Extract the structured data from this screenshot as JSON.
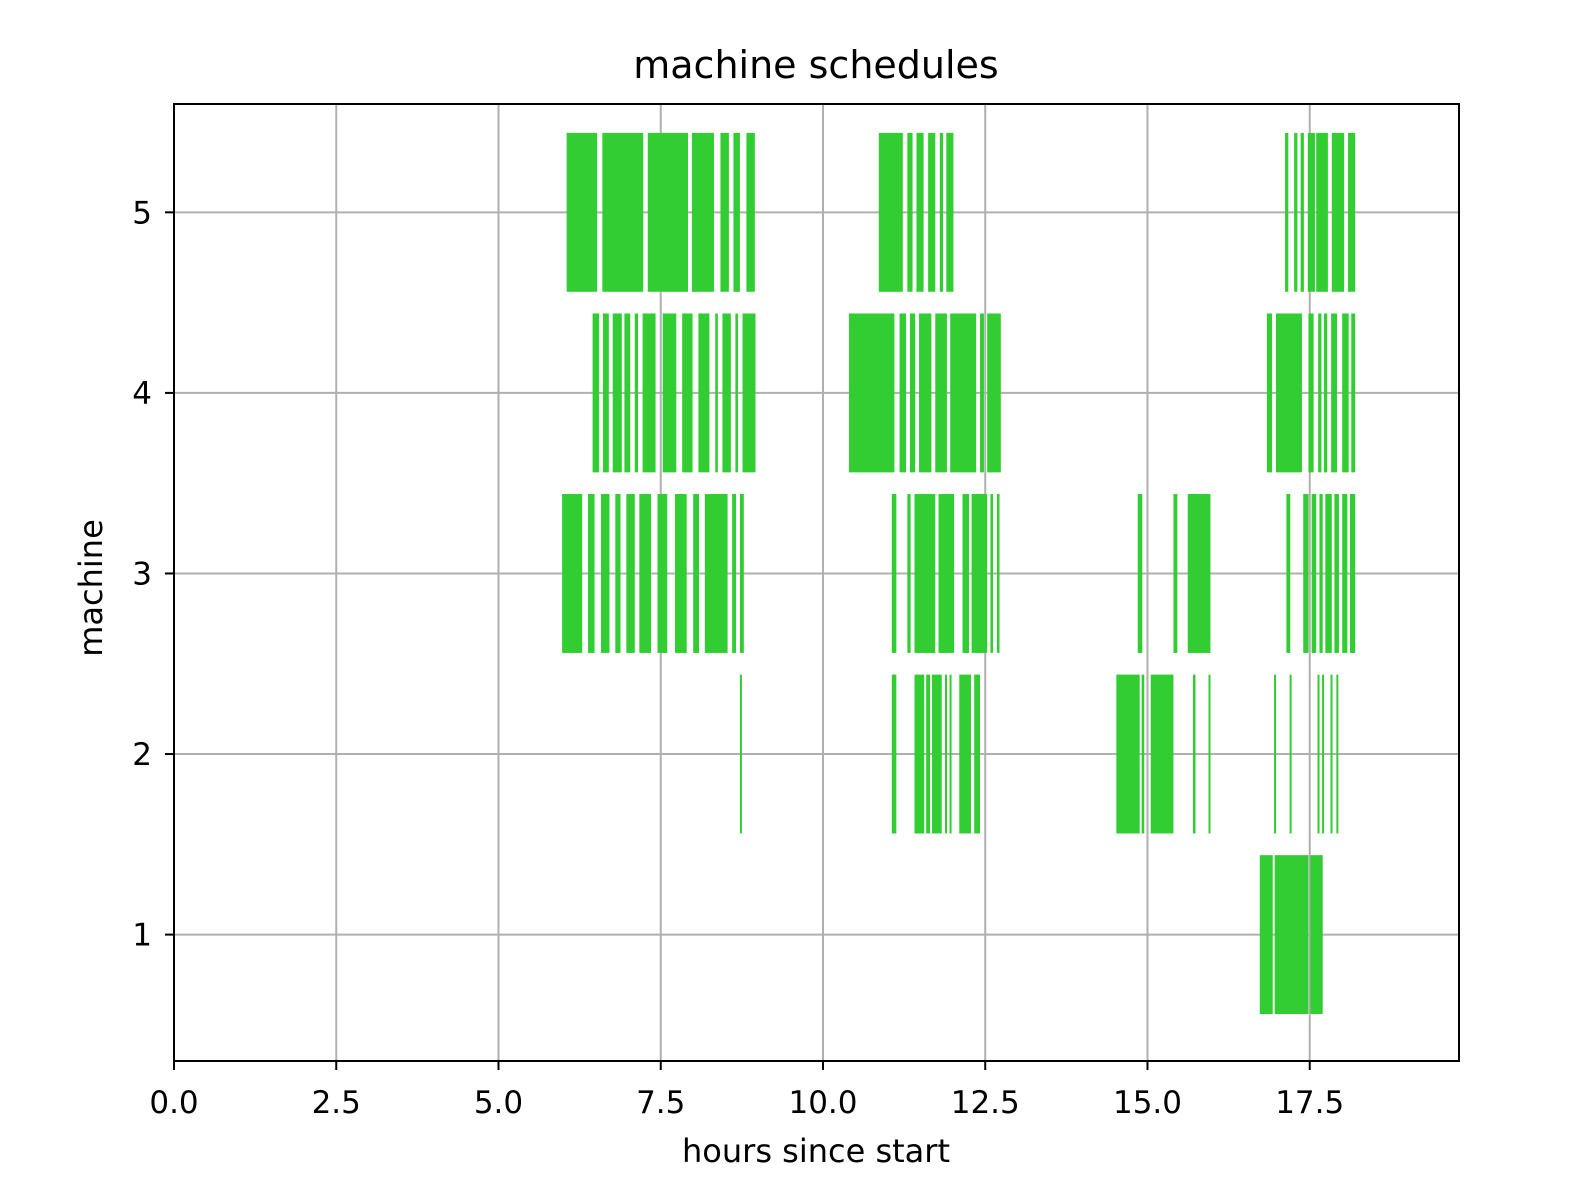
{
  "chart_data": {
    "type": "bar",
    "orientation": "horizontal-broken-bars",
    "title": "machine schedules",
    "xlabel": "hours since start",
    "ylabel": "machine",
    "xlim": [
      0,
      19.8
    ],
    "ylim": [
      0.3,
      5.6
    ],
    "xticks": [
      0.0,
      2.5,
      5.0,
      7.5,
      10.0,
      12.5,
      15.0,
      17.5
    ],
    "xtick_labels": [
      "0.0",
      "2.5",
      "5.0",
      "7.5",
      "10.0",
      "12.5",
      "15.0",
      "17.5"
    ],
    "yticks": [
      1,
      2,
      3,
      4,
      5
    ],
    "ytick_labels": [
      "1",
      "2",
      "3",
      "4",
      "5"
    ],
    "bar_height": 0.88,
    "grid": true,
    "colors": {
      "bar": "#32cd32",
      "grid": "#b0b0b0",
      "axes": "#000000",
      "background": "#ffffff"
    },
    "series": [
      {
        "machine": 1,
        "intervals": [
          [
            16.73,
            16.93
          ],
          [
            16.96,
            17.48
          ],
          [
            17.51,
            17.7
          ]
        ]
      },
      {
        "machine": 2,
        "intervals": [
          [
            8.72,
            8.75
          ],
          [
            11.06,
            11.13
          ],
          [
            11.41,
            11.56
          ],
          [
            11.59,
            11.65
          ],
          [
            11.68,
            11.83
          ],
          [
            11.88,
            11.91
          ],
          [
            11.95,
            11.98
          ],
          [
            12.1,
            12.28
          ],
          [
            12.33,
            12.42
          ],
          [
            14.52,
            14.88
          ],
          [
            14.91,
            14.95
          ],
          [
            15.05,
            15.4
          ],
          [
            15.7,
            15.74
          ],
          [
            15.94,
            15.97
          ],
          [
            16.95,
            16.98
          ],
          [
            17.19,
            17.22
          ],
          [
            17.62,
            17.65
          ],
          [
            17.69,
            17.72
          ],
          [
            17.82,
            17.85
          ],
          [
            17.91,
            17.94
          ]
        ]
      },
      {
        "machine": 3,
        "intervals": [
          [
            5.98,
            6.29
          ],
          [
            6.38,
            6.48
          ],
          [
            6.58,
            6.71
          ],
          [
            6.8,
            6.88
          ],
          [
            6.97,
            7.1
          ],
          [
            7.17,
            7.35
          ],
          [
            7.45,
            7.6
          ],
          [
            7.72,
            7.9
          ],
          [
            8.0,
            8.09
          ],
          [
            8.18,
            8.53
          ],
          [
            8.6,
            8.66
          ],
          [
            8.72,
            8.78
          ],
          [
            11.06,
            11.13
          ],
          [
            11.3,
            11.35
          ],
          [
            11.41,
            11.73
          ],
          [
            11.78,
            12.02
          ],
          [
            12.15,
            12.25
          ],
          [
            12.29,
            12.53
          ],
          [
            12.58,
            12.62
          ],
          [
            12.68,
            12.72
          ],
          [
            14.85,
            14.92
          ],
          [
            15.4,
            15.46
          ],
          [
            15.62,
            15.97
          ],
          [
            17.14,
            17.2
          ],
          [
            17.4,
            17.48
          ],
          [
            17.53,
            17.6
          ],
          [
            17.65,
            17.7
          ],
          [
            17.74,
            17.84
          ],
          [
            17.88,
            17.95
          ],
          [
            18.0,
            18.08
          ],
          [
            18.12,
            18.2
          ]
        ]
      },
      {
        "machine": 4,
        "intervals": [
          [
            6.45,
            6.55
          ],
          [
            6.61,
            6.7
          ],
          [
            6.76,
            6.9
          ],
          [
            6.94,
            7.03
          ],
          [
            7.1,
            7.15
          ],
          [
            7.22,
            7.42
          ],
          [
            7.53,
            7.74
          ],
          [
            7.83,
            7.99
          ],
          [
            8.08,
            8.25
          ],
          [
            8.34,
            8.38
          ],
          [
            8.45,
            8.58
          ],
          [
            8.65,
            8.69
          ],
          [
            8.76,
            8.96
          ],
          [
            10.4,
            11.1
          ],
          [
            11.18,
            11.28
          ],
          [
            11.34,
            11.42
          ],
          [
            11.48,
            11.67
          ],
          [
            11.73,
            11.91
          ],
          [
            11.96,
            12.36
          ],
          [
            12.42,
            12.48
          ],
          [
            12.53,
            12.74
          ],
          [
            16.84,
            16.92
          ],
          [
            16.98,
            17.38
          ],
          [
            17.48,
            17.56
          ],
          [
            17.63,
            17.68
          ],
          [
            17.72,
            17.77
          ],
          [
            17.83,
            17.92
          ],
          [
            18.0,
            18.1
          ],
          [
            18.14,
            18.2
          ]
        ]
      },
      {
        "machine": 5,
        "intervals": [
          [
            6.05,
            6.52
          ],
          [
            6.6,
            7.23
          ],
          [
            7.3,
            7.92
          ],
          [
            7.98,
            8.32
          ],
          [
            8.42,
            8.55
          ],
          [
            8.62,
            8.72
          ],
          [
            8.82,
            8.95
          ],
          [
            10.86,
            11.23
          ],
          [
            11.3,
            11.38
          ],
          [
            11.44,
            11.55
          ],
          [
            11.62,
            11.73
          ],
          [
            11.8,
            11.85
          ],
          [
            11.9,
            12.01
          ],
          [
            17.12,
            17.17
          ],
          [
            17.26,
            17.31
          ],
          [
            17.36,
            17.41
          ],
          [
            17.47,
            17.58
          ],
          [
            17.6,
            17.78
          ],
          [
            17.84,
            18.03
          ],
          [
            18.09,
            18.2
          ]
        ]
      }
    ]
  }
}
